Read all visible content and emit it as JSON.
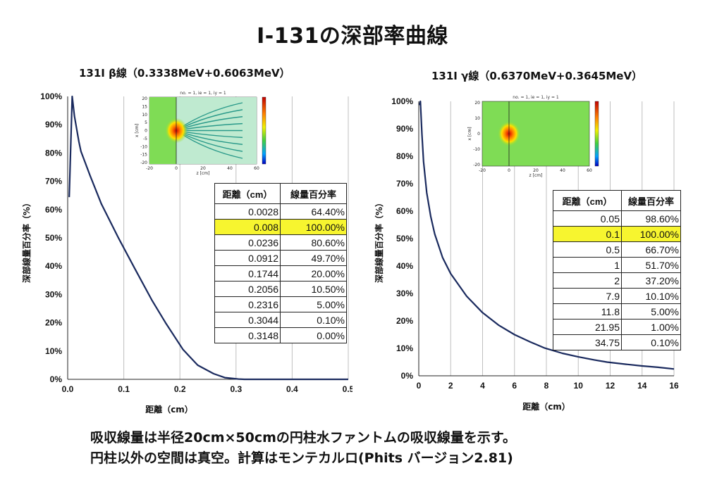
{
  "title": "I-131の深部率曲線",
  "footer": {
    "line1": "吸収線量は半径20cm×50cmの円柱水ファントムの吸収線量を示す。",
    "line2": "円柱以外の空間は真空。計算はモンテカルロ(Phits バージョン2.81)"
  },
  "colors": {
    "curve": "#1a2a5e",
    "highlight": "#f7f52f",
    "grid": "#bfbfbf"
  },
  "chart_data": [
    {
      "type": "line",
      "title": "131I  β線（0.3338MeV+0.6063MeV）",
      "xlabel": "距離（cm）",
      "ylabel": "深部線量百分率（%）",
      "xlim": [
        0,
        0.5
      ],
      "ylim": [
        0,
        100
      ],
      "x_ticks": [
        "0.0",
        "0.1",
        "0.2",
        "0.3",
        "0.4",
        "0.5"
      ],
      "y_ticks": [
        "0%",
        "10%",
        "20%",
        "30%",
        "40%",
        "50%",
        "60%",
        "70%",
        "80%",
        "90%",
        "100%"
      ],
      "grid": "vertical",
      "inset": {
        "title": "no. = 1, ie = 1, iy = 1",
        "xlabel": "z [cm]",
        "ylabel": "x [cm]",
        "x_ticks": [
          "-20",
          "0",
          "20",
          "40",
          "60"
        ],
        "y_ticks": [
          "20",
          "15",
          "10",
          "5",
          "0",
          "-5",
          "-10",
          "-15",
          "-20"
        ]
      },
      "table": {
        "headers": [
          "距離（cm）",
          "線量百分率"
        ],
        "rows": [
          [
            "0.0028",
            "64.40%"
          ],
          [
            "0.008",
            "100.00%"
          ],
          [
            "0.0236",
            "80.60%"
          ],
          [
            "0.0912",
            "49.70%"
          ],
          [
            "0.1744",
            "20.00%"
          ],
          [
            "0.2056",
            "10.50%"
          ],
          [
            "0.2316",
            "5.00%"
          ],
          [
            "0.3044",
            "0.10%"
          ],
          [
            "0.3148",
            "0.00%"
          ]
        ],
        "highlight_row": 1
      },
      "series": [
        {
          "x": [
            0.0028,
            0.008,
            0.012,
            0.02,
            0.0236,
            0.04,
            0.06,
            0.0912,
            0.12,
            0.15,
            0.1744,
            0.2056,
            0.2316,
            0.26,
            0.28,
            0.3044,
            0.3148,
            0.35,
            0.4,
            0.45,
            0.5
          ],
          "y": [
            64.4,
            100,
            93,
            84,
            80.6,
            72,
            62,
            49.7,
            39,
            28,
            20,
            10.5,
            5,
            2,
            0.6,
            0.1,
            0,
            0,
            0,
            0,
            0
          ]
        }
      ]
    },
    {
      "type": "line",
      "title": "131I  γ線（0.6370MeV+0.3645MeV）",
      "xlabel": "距離（cm）",
      "ylabel": "深部線量百分率（%）",
      "xlim": [
        0,
        16
      ],
      "ylim": [
        0,
        100
      ],
      "x_ticks": [
        "0",
        "2",
        "4",
        "6",
        "8",
        "10",
        "12",
        "14",
        "16"
      ],
      "y_ticks": [
        "0%",
        "10%",
        "20%",
        "30%",
        "40%",
        "50%",
        "60%",
        "70%",
        "80%",
        "90%",
        "100%"
      ],
      "grid": "vertical",
      "inset": {
        "title": "no. = 1, ie = 1, iy = 1",
        "xlabel": "z [cm]",
        "ylabel": "x [cm]",
        "x_ticks": [
          "-20",
          "0",
          "20",
          "40",
          "60"
        ],
        "y_ticks": [
          "20",
          "10",
          "0",
          "-10",
          "-20"
        ]
      },
      "table": {
        "headers": [
          "距離（cm）",
          "線量百分率"
        ],
        "rows": [
          [
            "0.05",
            "98.60%"
          ],
          [
            "0.1",
            "100.00%"
          ],
          [
            "0.5",
            "66.70%"
          ],
          [
            "1",
            "51.70%"
          ],
          [
            "2",
            "37.20%"
          ],
          [
            "7.9",
            "10.10%"
          ],
          [
            "11.8",
            "5.00%"
          ],
          [
            "21.95",
            "1.00%"
          ],
          [
            "34.75",
            "0.10%"
          ]
        ],
        "highlight_row": 1
      },
      "series": [
        {
          "x": [
            0.05,
            0.1,
            0.2,
            0.3,
            0.5,
            0.75,
            1,
            1.5,
            2,
            3,
            4,
            5,
            6,
            7,
            7.9,
            9,
            10,
            11,
            11.8,
            13,
            14,
            15,
            16
          ],
          "y": [
            98.6,
            100,
            88,
            78,
            66.7,
            58,
            51.7,
            43,
            37.2,
            29,
            23,
            18.5,
            15,
            12.3,
            10.1,
            8.2,
            6.9,
            5.8,
            5.0,
            4.2,
            3.6,
            3.1,
            2.5
          ]
        }
      ]
    }
  ]
}
